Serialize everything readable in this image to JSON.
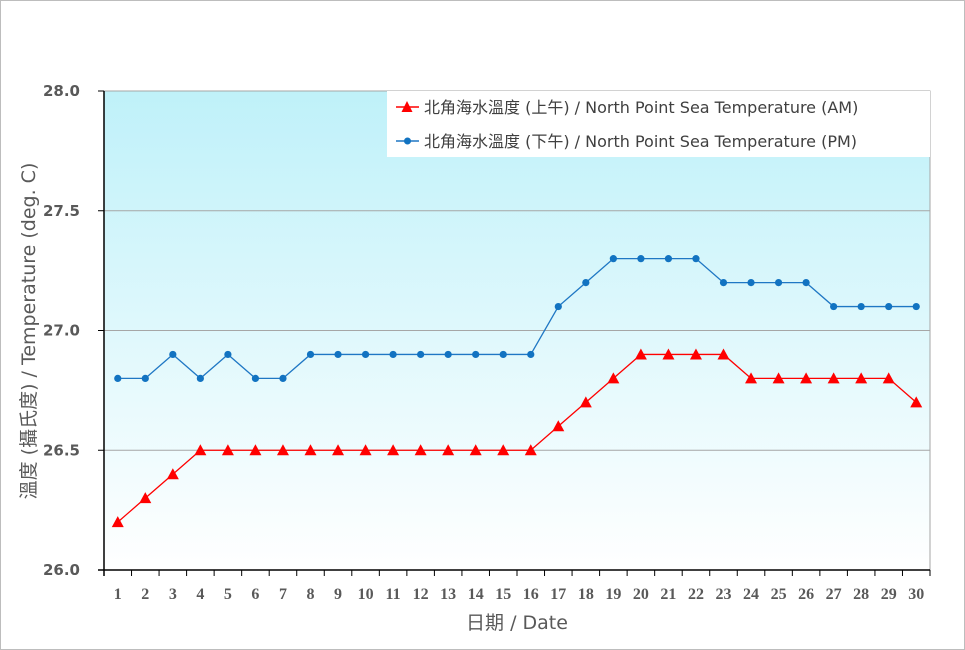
{
  "chart_data": {
    "type": "line",
    "title": "",
    "xlabel": "日期 / Date",
    "ylabel": "溫度 (攝氏度) / Temperature (deg. C)",
    "ylim": [
      26.0,
      28.0
    ],
    "yticks": [
      "26.0",
      "26.5",
      "27.0",
      "27.5",
      "28.0"
    ],
    "grid": true,
    "legend_position": "top-right",
    "categories": [
      "1",
      "2",
      "3",
      "4",
      "5",
      "6",
      "7",
      "8",
      "9",
      "10",
      "11",
      "12",
      "13",
      "14",
      "15",
      "16",
      "17",
      "18",
      "19",
      "20",
      "21",
      "22",
      "23",
      "24",
      "25",
      "26",
      "27",
      "28",
      "29",
      "30"
    ],
    "series": [
      {
        "name": "北角海水溫度 (上午) / North Point Sea Temperature (AM)",
        "color": "#ff0000",
        "marker": "triangle",
        "values": [
          26.2,
          26.3,
          26.4,
          26.5,
          26.5,
          26.5,
          26.5,
          26.5,
          26.5,
          26.5,
          26.5,
          26.5,
          26.5,
          26.5,
          26.5,
          26.5,
          26.6,
          26.7,
          26.8,
          26.9,
          26.9,
          26.9,
          26.9,
          26.8,
          26.8,
          26.8,
          26.8,
          26.8,
          26.8,
          26.7
        ]
      },
      {
        "name": "北角海水溫度 (下午) / North Point Sea Temperature (PM)",
        "color": "#1f77c4",
        "marker": "circle",
        "values": [
          26.8,
          26.8,
          26.9,
          26.8,
          26.9,
          26.8,
          26.8,
          26.9,
          26.9,
          26.9,
          26.9,
          26.9,
          26.9,
          26.9,
          26.9,
          26.9,
          27.1,
          27.2,
          27.3,
          27.3,
          27.3,
          27.3,
          27.2,
          27.2,
          27.2,
          27.2,
          27.1,
          27.1,
          27.1,
          27.1
        ]
      }
    ]
  },
  "legend": {
    "am_label": "北角海水溫度 (上午) / North Point Sea Temperature (AM)",
    "pm_label": "北角海水溫度 (下午) / North Point Sea Temperature (PM)"
  },
  "axes": {
    "xlabel": "日期 / Date",
    "ylabel": "溫度 (攝氏度) / Temperature (deg. C)"
  }
}
